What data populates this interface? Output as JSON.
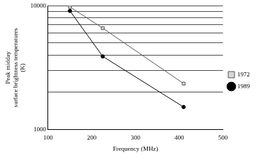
{
  "chart_data": {
    "type": "line",
    "xlabel": "Frequency (MHz)",
    "ylabel": [
      "Peak midday",
      "surface brightness temperatures",
      "(K)"
    ],
    "series": [
      {
        "name": "1972",
        "color": "#555555",
        "marker": "square",
        "x": [
          150,
          225,
          410
        ],
        "values": [
          9800,
          6600,
          2350
        ]
      },
      {
        "name": "1989",
        "color": "#000000",
        "marker": "circle",
        "x": [
          150,
          225,
          410
        ],
        "values": [
          9100,
          3900,
          1520
        ]
      }
    ],
    "xlim": [
      100,
      500
    ],
    "xticks": [
      100,
      200,
      300,
      400,
      500
    ],
    "ylim": [
      1000,
      10000
    ],
    "yticks": [
      1000,
      10000
    ],
    "log": "y",
    "grid": true,
    "legend": "right"
  }
}
